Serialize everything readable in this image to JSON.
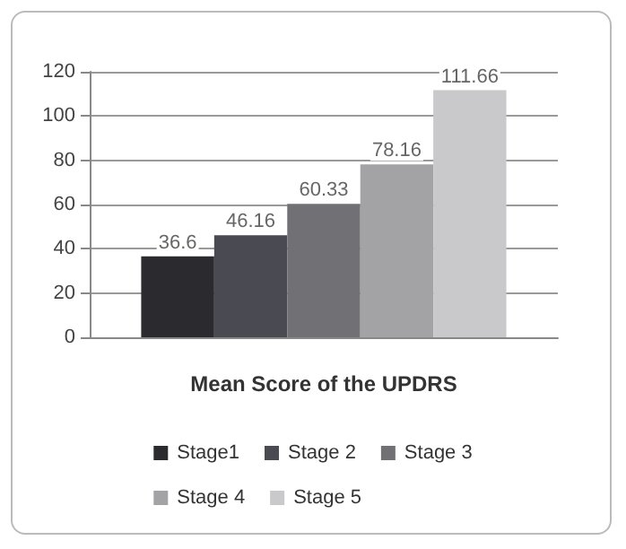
{
  "chart_data": {
    "type": "bar",
    "xlabel": "Mean Score of the UPDRS",
    "categories": [
      null
    ],
    "series": [
      {
        "name": "Stage1",
        "color": "#2b2b2f",
        "values": [
          36.6
        ]
      },
      {
        "name": "Stage 2",
        "color": "#4a4a52",
        "values": [
          46.16
        ]
      },
      {
        "name": "Stage 3",
        "color": "#717175",
        "values": [
          60.33
        ]
      },
      {
        "name": "Stage 4",
        "color": "#a3a3a6",
        "values": [
          78.16
        ]
      },
      {
        "name": "Stage 5",
        "color": "#c9c9cb",
        "values": [
          111.66
        ]
      }
    ],
    "ylim": [
      0,
      120
    ],
    "yticks": [
      0,
      20,
      40,
      60,
      80,
      100,
      120
    ],
    "grid": "y",
    "legend": "bottom",
    "data_labels": true
  }
}
